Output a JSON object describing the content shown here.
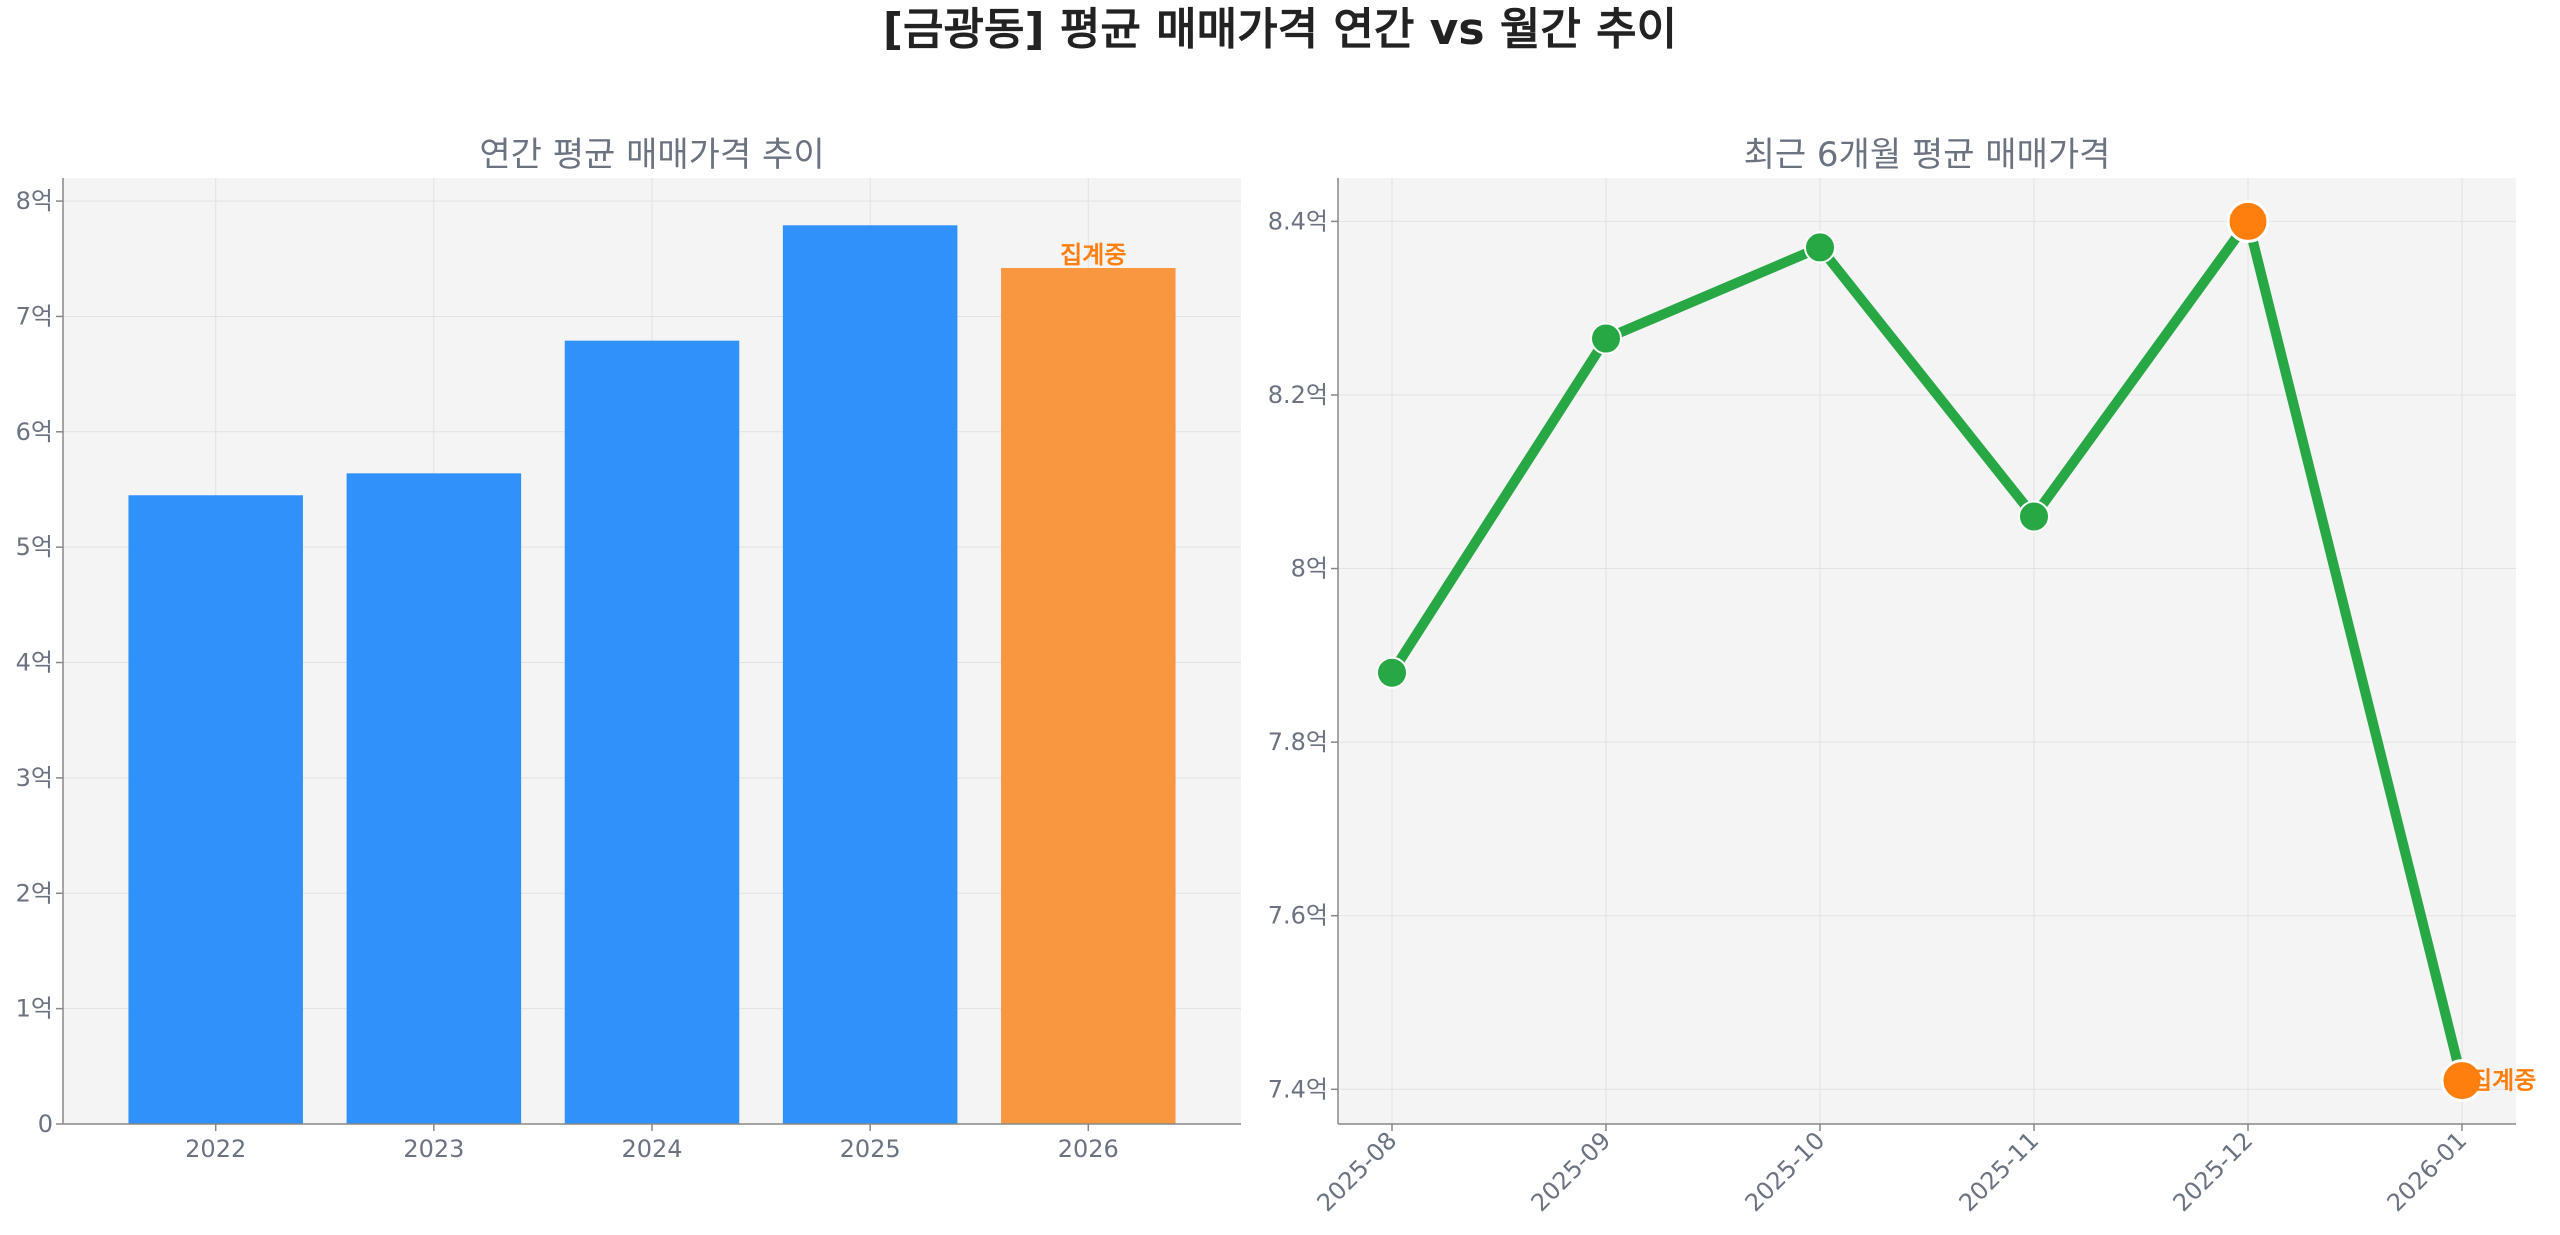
{
  "title": "[금광동] 평균 매매가격 연간 vs 월간 추이",
  "chart_data": [
    {
      "type": "bar",
      "title": "연간 평균 매매가격 추이",
      "categories": [
        "2022",
        "2023",
        "2024",
        "2025",
        "2026"
      ],
      "values": [
        5.45,
        5.64,
        6.79,
        7.79,
        7.42
      ],
      "ylim": [
        0,
        8.2
      ],
      "yticks": [
        0,
        1,
        2,
        3,
        4,
        5,
        6,
        7,
        8
      ],
      "ytick_labels": [
        "0",
        "1억",
        "2억",
        "3억",
        "4억",
        "5억",
        "6억",
        "7억",
        "8억"
      ],
      "colors": [
        "#3191fb",
        "#3191fb",
        "#3191fb",
        "#3191fb",
        "#f99740"
      ],
      "annotations": [
        {
          "category": "2026",
          "text": "집계중",
          "color": "#ff7f0e"
        }
      ],
      "grid": true
    },
    {
      "type": "line",
      "title": "최근 6개월 평균 매매가격",
      "x": [
        "2025-08",
        "2025-09",
        "2025-10",
        "2025-11",
        "2025-12",
        "2026-01"
      ],
      "values": [
        7.88,
        8.265,
        8.37,
        8.06,
        8.4,
        7.41
      ],
      "ylim": [
        7.36,
        8.45
      ],
      "yticks": [
        7.4,
        7.6,
        7.8,
        8.0,
        8.2,
        8.4
      ],
      "ytick_labels": [
        "7.4억",
        "7.6억",
        "7.8억",
        "8억",
        "8.2억",
        "8.4억"
      ],
      "line_color": "#28a745",
      "highlight_color": "#ff7f0e",
      "highlighted_points": [
        "2025-12",
        "2026-01"
      ],
      "annotations": [
        {
          "x": "2026-01",
          "text": "집계중",
          "color": "#ff7f0e"
        }
      ],
      "grid": true
    }
  ]
}
